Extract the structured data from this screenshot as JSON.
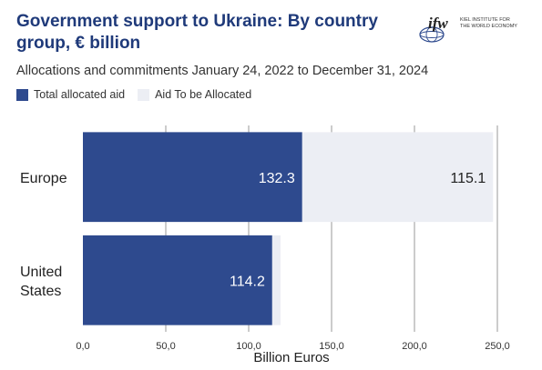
{
  "header": {
    "title": "Government support to Ukraine: By country group, € billion",
    "subtitle": "Allocations and commitments January 24, 2022 to December 31, 2024"
  },
  "logo": {
    "wordmark": "ifw",
    "line1": "KIEL INSTITUTE FOR",
    "line2": "THE WORLD ECONOMY"
  },
  "legend": [
    {
      "label": "Total allocated aid",
      "color": "#2e4a8e"
    },
    {
      "label": "Aid To be Allocated",
      "color": "#eceef4"
    }
  ],
  "chart_data": {
    "type": "bar",
    "orientation": "horizontal",
    "stacked": true,
    "categories": [
      "Europe",
      "United States"
    ],
    "series": [
      {
        "name": "Total allocated aid",
        "values": [
          132.3,
          114.2
        ],
        "labels": [
          "132.3",
          "114.2"
        ],
        "color": "#2e4a8e"
      },
      {
        "name": "Aid To be Allocated",
        "values": [
          115.1,
          5
        ],
        "labels": [
          "115.1",
          ""
        ],
        "color": "#eceef4"
      }
    ],
    "xlabel": "Billion Euros",
    "xlim": [
      0,
      250
    ],
    "xticks": [
      0,
      50,
      100,
      150,
      200,
      250
    ],
    "xtick_labels": [
      "0,0",
      "50,0",
      "100,0",
      "150,0",
      "200,0",
      "250,0"
    ],
    "grid": true,
    "legend_position": "top-left"
  }
}
